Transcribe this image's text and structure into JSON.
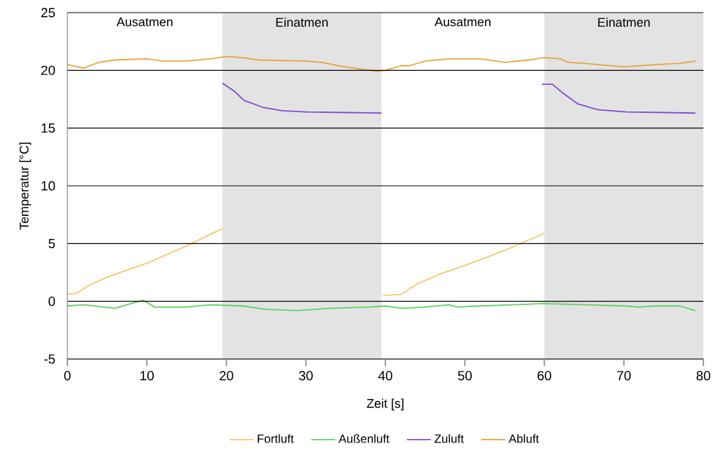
{
  "chart_data": {
    "type": "line",
    "xlabel": "Zeit [s]",
    "ylabel": "Temperatur [°C]",
    "xlim": [
      0,
      80
    ],
    "ylim": [
      -5,
      25
    ],
    "xticks": [
      0,
      10,
      20,
      30,
      40,
      50,
      60,
      70,
      80
    ],
    "yticks": [
      -5,
      0,
      5,
      10,
      15,
      20,
      25
    ],
    "grid": "y",
    "legend": "bottom",
    "marker": "none",
    "line_style": "solid",
    "bands": [
      {
        "axis": "x",
        "from": 19.5,
        "to": 39.5,
        "label": "Einatmen",
        "color": "#e3e3e3"
      },
      {
        "axis": "x",
        "from": 60,
        "to": 80,
        "label": "Einatmen",
        "color": "#e3e3e3"
      }
    ],
    "annotations": [
      "Ausatmen",
      "Ausatmen"
    ],
    "series": [
      {
        "name": "Fortluft",
        "color": "#f5c86e",
        "x": [
          0,
          1.2,
          2.5,
          5,
          10,
          15,
          19.5,
          null,
          39.7,
          42,
          44,
          47,
          50,
          55,
          60
        ],
        "values": [
          0.6,
          0.7,
          1.3,
          2.1,
          3.3,
          4.8,
          6.3,
          null,
          0.5,
          0.6,
          1.5,
          2.4,
          3.1,
          4.4,
          5.9
        ]
      },
      {
        "name": "Außenluft",
        "color": "#5fd35f",
        "x": [
          0,
          2,
          6,
          8,
          9.5,
          11,
          15,
          18,
          22,
          25,
          29,
          33,
          38,
          40,
          42,
          45,
          48,
          49,
          52,
          56,
          60,
          65,
          70,
          72,
          74,
          77,
          79
        ],
        "values": [
          -0.4,
          -0.3,
          -0.6,
          -0.2,
          0.1,
          -0.5,
          -0.5,
          -0.3,
          -0.4,
          -0.7,
          -0.8,
          -0.6,
          -0.5,
          -0.4,
          -0.6,
          -0.5,
          -0.3,
          -0.5,
          -0.4,
          -0.3,
          -0.2,
          -0.3,
          -0.4,
          -0.5,
          -0.4,
          -0.4,
          -0.8
        ]
      },
      {
        "name": "Zuluft",
        "color": "#7d4fd0",
        "x": [
          19.5,
          21,
          22.2,
          24.6,
          27,
          30,
          39.5,
          null,
          59.7,
          61,
          62.4,
          64.2,
          66.7,
          70.3,
          79
        ],
        "values": [
          18.9,
          18.2,
          17.4,
          16.8,
          16.5,
          16.4,
          16.3,
          null,
          18.8,
          18.8,
          18.0,
          17.1,
          16.6,
          16.4,
          16.3
        ]
      },
      {
        "name": "Abluft",
        "color": "#e8a43c",
        "x": [
          0,
          2,
          4,
          6,
          10,
          12,
          15,
          18,
          20,
          22,
          24,
          30,
          32,
          34,
          37,
          39,
          40,
          42,
          43,
          45,
          48,
          52,
          55,
          58,
          60,
          62,
          63,
          65,
          70,
          74,
          77,
          79
        ],
        "values": [
          20.5,
          20.2,
          20.7,
          20.9,
          21.0,
          20.8,
          20.8,
          21.0,
          21.2,
          21.1,
          20.9,
          20.8,
          20.7,
          20.4,
          20.1,
          19.9,
          20.0,
          20.4,
          20.4,
          20.8,
          21.0,
          21.0,
          20.7,
          20.9,
          21.1,
          21.0,
          20.7,
          20.6,
          20.3,
          20.5,
          20.6,
          20.8
        ]
      }
    ]
  }
}
